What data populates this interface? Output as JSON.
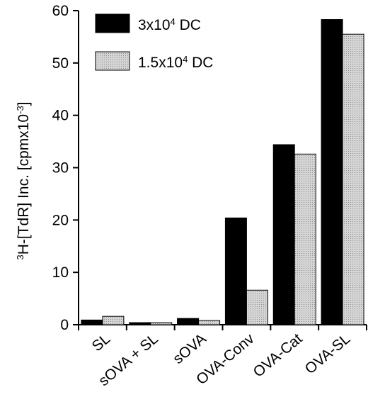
{
  "chart_data": {
    "type": "bar",
    "categories": [
      "SL",
      "sOVA + SL",
      "sOVA",
      "OVA-Conv",
      "OVA-Cat",
      "OVA-SL"
    ],
    "series": [
      {
        "name": "3x10^4 DC",
        "name_base": "3x10",
        "name_exp": "4",
        "name_suffix": " DC",
        "color": "#000000",
        "values": [
          0.9,
          0.4,
          1.2,
          20.4,
          34.4,
          58.3
        ]
      },
      {
        "name": "1.5x10^4 DC",
        "name_base": "1.5x10",
        "name_exp": "4",
        "name_suffix": " DC",
        "color": "#c8c8c8",
        "values": [
          1.6,
          0.4,
          0.8,
          6.6,
          32.6,
          55.5
        ]
      }
    ],
    "ylabel": {
      "sup1": "3",
      "part1": "H-[TdR] Inc. [cpmx10",
      "sup2": "-3",
      "part2": "]"
    },
    "ylim": [
      0,
      60
    ],
    "yticks": [
      "0",
      "10",
      "20",
      "30",
      "40",
      "50",
      "60"
    ],
    "grid": false,
    "legend_position": "top-left"
  }
}
